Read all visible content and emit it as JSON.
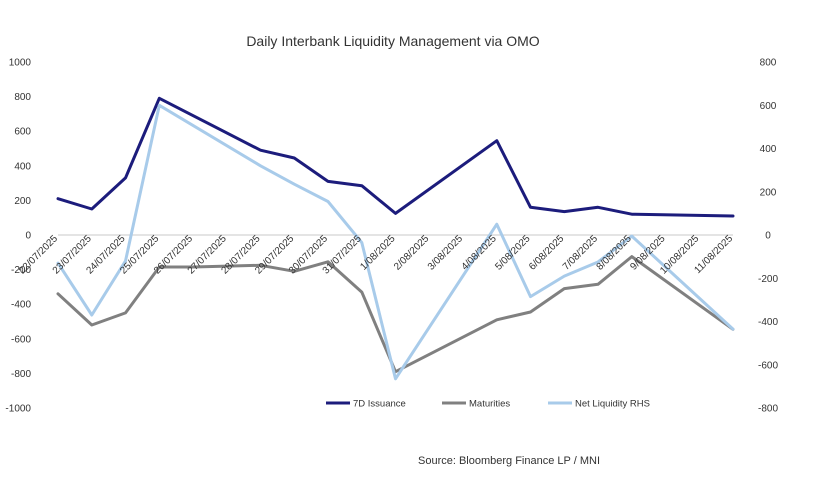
{
  "chart_data": {
    "type": "line",
    "title": "Daily Interbank Liquidity Management via OMO",
    "source": "Source: Bloomberg Finance LP / MNI",
    "categories": [
      "22/07/2025",
      "23/07/2025",
      "24/07/2025",
      "25/07/2025",
      "26/07/2025",
      "27/07/2025",
      "28/07/2025",
      "29/07/2025",
      "30/07/2025",
      "31/07/2025",
      "1/08/2025",
      "2/08/2025",
      "3/08/2025",
      "4/08/2025",
      "5/08/2025",
      "6/08/2025",
      "7/08/2025",
      "8/08/2025",
      "9/08/2025",
      "10/08/2025",
      "11/08/2025"
    ],
    "left_axis": {
      "ylim": [
        -1000,
        1000
      ],
      "ticks": [
        1000,
        800,
        600,
        400,
        200,
        0,
        -200,
        -400,
        -600,
        -800,
        -1000
      ]
    },
    "right_axis": {
      "ylim": [
        -800,
        800
      ],
      "ticks": [
        800,
        600,
        400,
        200,
        0,
        -200,
        -400,
        -600,
        -800
      ]
    },
    "series": [
      {
        "name": "7D Issuance",
        "axis": "left",
        "color": "#1c1c7c",
        "values": [
          210,
          150,
          330,
          790,
          null,
          null,
          490,
          445,
          310,
          285,
          125,
          null,
          null,
          545,
          160,
          135,
          160,
          120,
          null,
          null,
          110
        ]
      },
      {
        "name": "Maturities",
        "axis": "left",
        "color": "#808080",
        "values": [
          -340,
          -520,
          -450,
          -185,
          -185,
          -180,
          -175,
          -210,
          -155,
          -330,
          -790,
          null,
          null,
          -490,
          -445,
          -310,
          -285,
          -125,
          null,
          null,
          -545
        ]
      },
      {
        "name": "Net Liquidity RHS",
        "axis": "right",
        "color": "#a8cbea",
        "values": [
          -130,
          -370,
          -120,
          600,
          null,
          null,
          320,
          235,
          155,
          -35,
          -665,
          null,
          null,
          50,
          -285,
          -190,
          -125,
          -5,
          null,
          null,
          -435
        ]
      }
    ],
    "legend": [
      "7D Issuance",
      "Maturities",
      "Net Liquidity RHS"
    ],
    "legend_position": "bottom"
  }
}
